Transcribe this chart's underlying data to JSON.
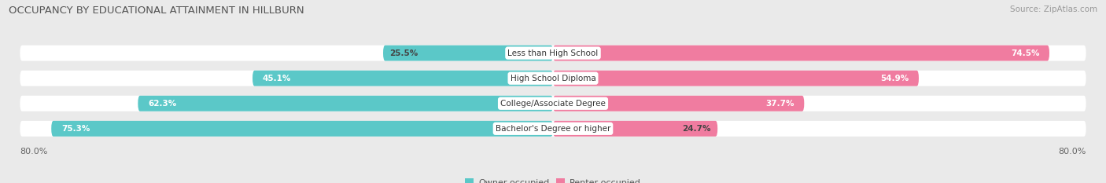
{
  "title": "OCCUPANCY BY EDUCATIONAL ATTAINMENT IN HILLBURN",
  "source": "Source: ZipAtlas.com",
  "categories": [
    "Less than High School",
    "High School Diploma",
    "College/Associate Degree",
    "Bachelor's Degree or higher"
  ],
  "owner_pct": [
    25.5,
    45.1,
    62.3,
    75.3
  ],
  "renter_pct": [
    74.5,
    54.9,
    37.7,
    24.7
  ],
  "owner_color": "#5BC8C8",
  "renter_color": "#F07CA0",
  "owner_label": "Owner-occupied",
  "renter_label": "Renter-occupied",
  "axis_left_label": "80.0%",
  "axis_right_label": "80.0%",
  "max_val": 80.0,
  "title_fontsize": 9.5,
  "source_fontsize": 7.5,
  "bar_label_fontsize": 7.5,
  "category_fontsize": 7.5,
  "legend_fontsize": 8,
  "axis_label_fontsize": 8,
  "background_color": "#eaeaea",
  "title_color": "#555555",
  "source_color": "#999999"
}
